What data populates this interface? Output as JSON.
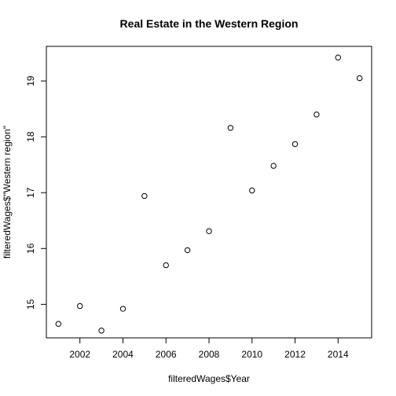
{
  "chart_data": {
    "type": "scatter",
    "title": "Real Estate in the Western Region",
    "xlabel": "filteredWages$Year",
    "ylabel": "filteredWages$\"Western region\"",
    "xlim": [
      2000.44,
      2015.56
    ],
    "ylim": [
      14.4,
      19.62
    ],
    "x_ticks": [
      2002,
      2004,
      2006,
      2008,
      2010,
      2012,
      2014
    ],
    "x_tick_labels": [
      "2002",
      "2004",
      "2006",
      "2008",
      "2010",
      "2012",
      "2014"
    ],
    "y_ticks": [
      15,
      16,
      17,
      18,
      19
    ],
    "y_tick_labels": [
      "15",
      "16",
      "17",
      "18",
      "19"
    ],
    "grid": false,
    "marker": "open-circle",
    "points": [
      {
        "x": 2001,
        "y": 14.65
      },
      {
        "x": 2002,
        "y": 14.97
      },
      {
        "x": 2003,
        "y": 14.53
      },
      {
        "x": 2004,
        "y": 14.92
      },
      {
        "x": 2005,
        "y": 16.94
      },
      {
        "x": 2006,
        "y": 15.7
      },
      {
        "x": 2007,
        "y": 15.97
      },
      {
        "x": 2008,
        "y": 16.31
      },
      {
        "x": 2009,
        "y": 18.16
      },
      {
        "x": 2010,
        "y": 17.04
      },
      {
        "x": 2011,
        "y": 17.48
      },
      {
        "x": 2012,
        "y": 17.87
      },
      {
        "x": 2013,
        "y": 18.4
      },
      {
        "x": 2014,
        "y": 19.42
      },
      {
        "x": 2015,
        "y": 19.05
      }
    ]
  }
}
